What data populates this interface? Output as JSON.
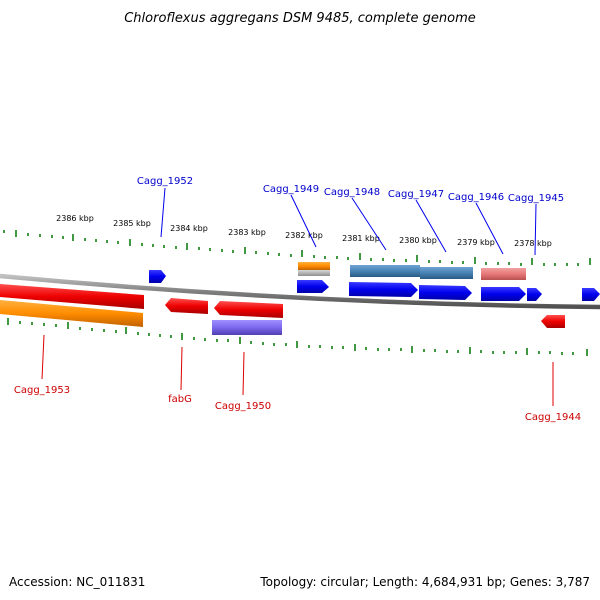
{
  "title": "Chloroflexus aggregans DSM 9485, complete genome",
  "footer": {
    "accession": "Accession: NC_011831",
    "topology": "Topology: circular; Length: 4,684,931 bp; Genes: 3,787"
  },
  "colors": {
    "backbone": "#808080",
    "tick": "#007700",
    "label_blue": "#0000cc",
    "label_red": "#cc0000",
    "blue": "#0000ee",
    "red": "#ee0000",
    "orange": "#ff8c00",
    "steelblue": "#4682b4",
    "salmon": "#e87878",
    "purple": "#7b68ee",
    "gray": "#b0b0b0"
  },
  "ticks": {
    "major_labels": [
      "2386 kbp",
      "2385 kbp",
      "2384 kbp",
      "2383 kbp",
      "2382 kbp",
      "2381 kbp",
      "2380 kbp",
      "2379 kbp",
      "2378 kbp"
    ]
  },
  "labels": {
    "top": [
      "Cagg_1952",
      "Cagg_1949",
      "Cagg_1948",
      "Cagg_1947",
      "Cagg_1946",
      "Cagg_1945"
    ],
    "bottom": [
      "Cagg_1953",
      "fabG",
      "Cagg_1950",
      "Cagg_1944"
    ]
  }
}
